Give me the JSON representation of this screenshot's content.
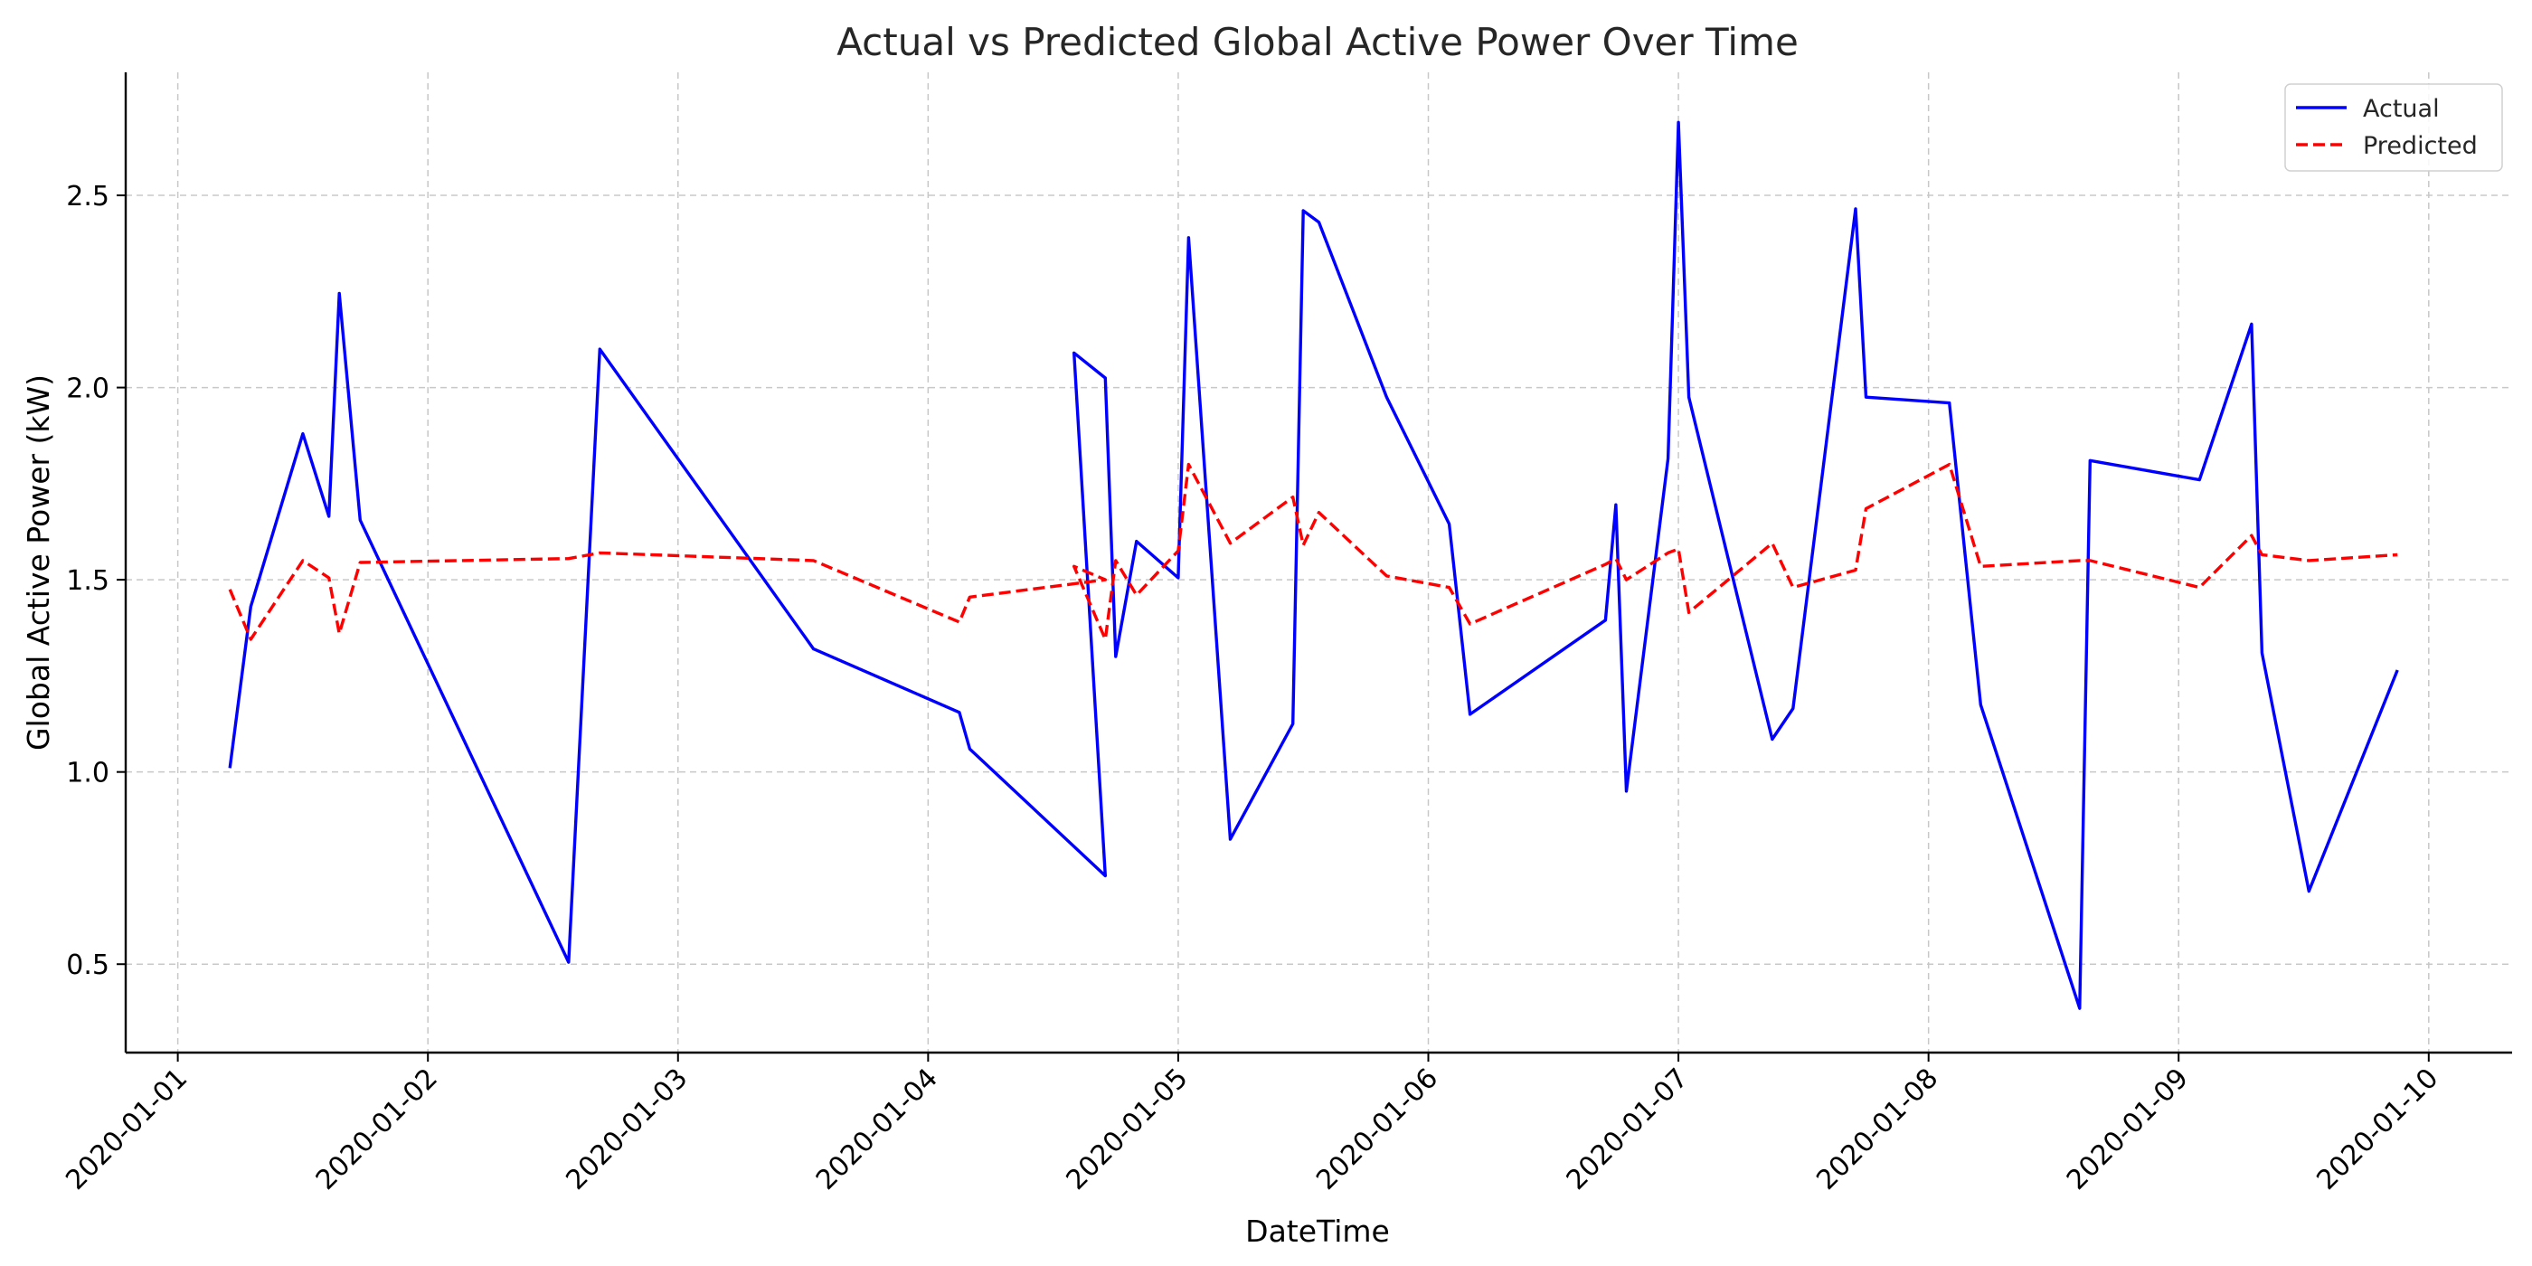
{
  "chart_data": {
    "type": "line",
    "title": "Actual vs Predicted Global Active Power Over Time",
    "xlabel": "DateTime",
    "ylabel": "Global Active Power (kW)",
    "xlim": [
      "2019-12-31 19:00",
      "2020-01-10 08:00"
    ],
    "ylim": [
      0.27,
      2.82
    ],
    "x_ticks": [
      "2020-01-01",
      "2020-01-02",
      "2020-01-03",
      "2020-01-04",
      "2020-01-05",
      "2020-01-06",
      "2020-01-07",
      "2020-01-08",
      "2020-01-09",
      "2020-01-10"
    ],
    "y_ticks": [
      0.5,
      1.0,
      1.5,
      2.0,
      2.5
    ],
    "y_tick_labels": [
      "0.5",
      "1.0",
      "1.5",
      "2.0",
      "2.5"
    ],
    "grid": true,
    "legend_position": "top-right",
    "x": [
      "2020-01-01 05:00",
      "2020-01-01 07:00",
      "2020-01-01 12:00",
      "2020-01-01 14:30",
      "2020-01-01 15:30",
      "2020-01-01 17:30",
      "2020-01-02 13:30",
      "2020-01-02 16:30",
      "2020-01-03 13:00",
      "2020-01-04 03:00",
      "2020-01-04 04:00",
      "2020-01-04 17:00",
      "2020-01-04 14:00",
      "2020-01-04 17:00",
      "2020-01-04 18:00",
      "2020-01-04 20:00",
      "2020-01-05 00:00",
      "2020-01-05 01:00",
      "2020-01-05 05:00",
      "2020-01-05 11:00",
      "2020-01-05 12:00",
      "2020-01-05 13:30",
      "2020-01-05 20:00",
      "2020-01-06 02:00",
      "2020-01-06 04:00",
      "2020-01-06 17:00",
      "2020-01-06 18:00",
      "2020-01-06 19:00",
      "2020-01-06 23:00",
      "2020-01-07 00:00",
      "2020-01-07 01:00",
      "2020-01-07 09:00",
      "2020-01-07 11:00",
      "2020-01-07 17:00",
      "2020-01-07 18:00",
      "2020-01-08 02:00",
      "2020-01-08 05:00",
      "2020-01-08 14:30",
      "2020-01-08 15:30",
      "2020-01-09 02:00",
      "2020-01-09 07:00",
      "2020-01-09 08:00",
      "2020-01-09 12:30",
      "2020-01-09 21:00"
    ],
    "series": [
      {
        "name": "Actual",
        "color": "#0000ff",
        "dash": "solid",
        "values": [
          1.01,
          1.43,
          1.88,
          1.665,
          2.245,
          1.655,
          0.505,
          2.1,
          1.32,
          1.155,
          1.06,
          0.73,
          2.09,
          2.025,
          1.3,
          1.6,
          1.505,
          2.39,
          0.825,
          1.125,
          2.46,
          2.43,
          1.975,
          1.645,
          1.15,
          1.395,
          1.695,
          0.95,
          1.815,
          2.69,
          1.975,
          1.085,
          1.165,
          2.465,
          1.975,
          1.96,
          1.175,
          0.385,
          1.81,
          1.76,
          2.165,
          1.31,
          0.69,
          1.265
        ]
      },
      {
        "name": "Predicted",
        "color": "#ff0000",
        "dash": "dashed",
        "values": [
          1.475,
          1.345,
          1.55,
          1.505,
          1.36,
          1.545,
          1.555,
          1.57,
          1.55,
          1.39,
          1.455,
          1.5,
          1.535,
          1.345,
          1.55,
          1.46,
          1.575,
          1.8,
          1.595,
          1.715,
          1.59,
          1.675,
          1.51,
          1.48,
          1.385,
          1.54,
          1.555,
          1.5,
          1.57,
          1.58,
          1.415,
          1.595,
          1.48,
          1.525,
          1.685,
          1.8,
          1.535,
          1.55,
          1.55,
          1.48,
          1.615,
          1.565,
          1.55,
          1.565
        ]
      }
    ]
  }
}
